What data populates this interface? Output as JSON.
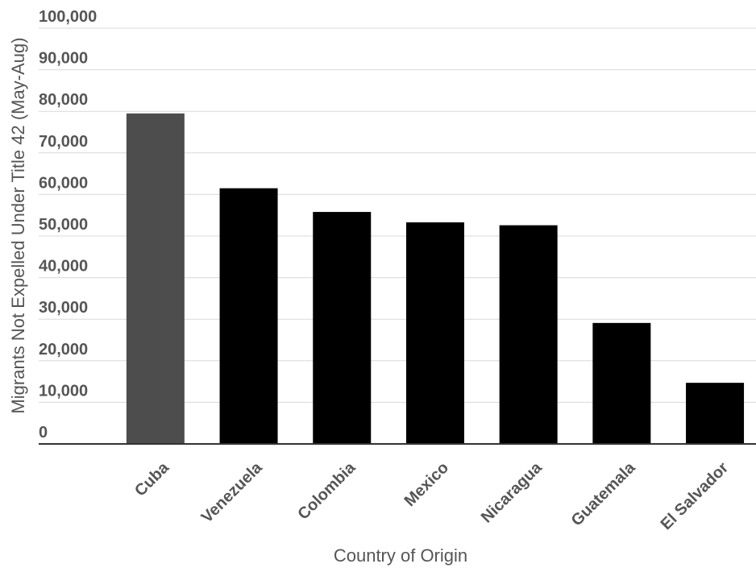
{
  "chart_data": {
    "type": "bar",
    "title": "",
    "xlabel": "Country of Origin",
    "ylabel": "Migrants Not Expelled Under Title 42 (May-Aug)",
    "categories": [
      "Cuba",
      "Venezuela",
      "Colombia",
      "Mexico",
      "Nicaragua",
      "Guatemala",
      "El Salvador"
    ],
    "values": [
      79500,
      61500,
      55800,
      53300,
      52600,
      29100,
      14700
    ],
    "bar_colors": [
      "#4d4d4d",
      "#000000",
      "#000000",
      "#000000",
      "#000000",
      "#000000",
      "#000000"
    ],
    "ylim": [
      0,
      100000
    ],
    "yticks": [
      0,
      10000,
      20000,
      30000,
      40000,
      50000,
      60000,
      70000,
      80000,
      90000,
      100000
    ],
    "ytick_labels": [
      "0",
      "10,000",
      "20,000",
      "30,000",
      "40,000",
      "50,000",
      "60,000",
      "70,000",
      "80,000",
      "90,000",
      "100,000"
    ],
    "grid": true,
    "legend": "none"
  }
}
